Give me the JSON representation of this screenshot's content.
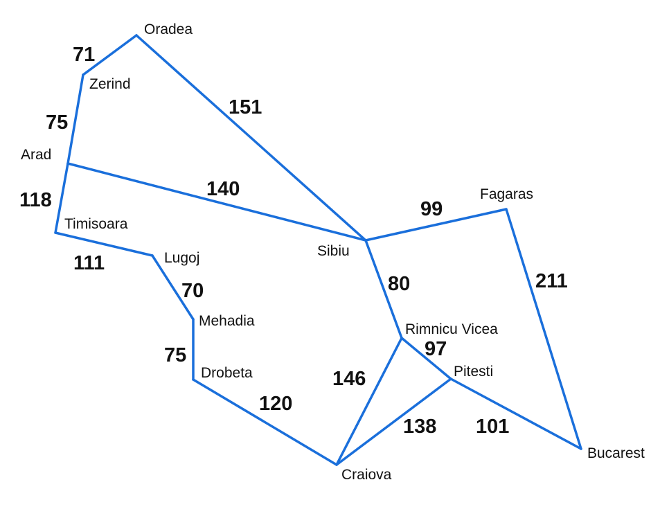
{
  "colors": {
    "road": "#1a6fdb",
    "text": "#111111",
    "background": "#ffffff"
  },
  "cities": {
    "oradea": "Oradea",
    "zerind": "Zerind",
    "arad": "Arad",
    "timisoara": "Timisoara",
    "lugoj": "Lugoj",
    "mehadia": "Mehadia",
    "drobeta": "Drobeta",
    "craiova": "Craiova",
    "sibiu": "Sibiu",
    "rimnicu_vicea": "Rimnicu Vicea",
    "fagaras": "Fagaras",
    "pitesti": "Pitesti",
    "bucarest": "Bucarest"
  },
  "roads": [
    {
      "from": "oradea",
      "to": "zerind",
      "distance": "71"
    },
    {
      "from": "zerind",
      "to": "arad",
      "distance": "75"
    },
    {
      "from": "arad",
      "to": "timisoara",
      "distance": "118"
    },
    {
      "from": "timisoara",
      "to": "lugoj",
      "distance": "111"
    },
    {
      "from": "lugoj",
      "to": "mehadia",
      "distance": "70"
    },
    {
      "from": "mehadia",
      "to": "drobeta",
      "distance": "75"
    },
    {
      "from": "drobeta",
      "to": "craiova",
      "distance": "120"
    },
    {
      "from": "oradea",
      "to": "sibiu",
      "distance": "151"
    },
    {
      "from": "arad",
      "to": "sibiu",
      "distance": "140"
    },
    {
      "from": "sibiu",
      "to": "fagaras",
      "distance": "99"
    },
    {
      "from": "sibiu",
      "to": "rimnicu_vicea",
      "distance": "80"
    },
    {
      "from": "fagaras",
      "to": "bucarest",
      "distance": "211"
    },
    {
      "from": "rimnicu_vicea",
      "to": "pitesti",
      "distance": "97"
    },
    {
      "from": "rimnicu_vicea",
      "to": "craiova",
      "distance": "146"
    },
    {
      "from": "craiova",
      "to": "pitesti",
      "distance": "138"
    },
    {
      "from": "pitesti",
      "to": "bucarest",
      "distance": "101"
    }
  ]
}
